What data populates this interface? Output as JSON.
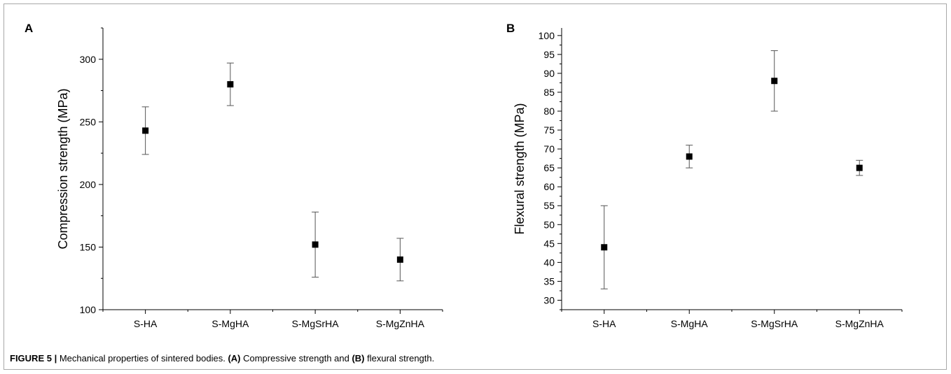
{
  "chart_data": [
    {
      "type": "scatter",
      "panel": "A",
      "categories": [
        "S-HA",
        "S-MgHA",
        "S-MgSrHA",
        "S-MgZnHA"
      ],
      "series": [
        {
          "values": [
            243,
            280,
            152,
            140
          ],
          "error_low": [
            224,
            263,
            126,
            123
          ],
          "error_high": [
            262,
            297,
            178,
            157
          ]
        }
      ],
      "ylabel": "Compression strength (MPa)",
      "ylim": [
        100,
        325
      ],
      "yticks": [
        100,
        150,
        200,
        250,
        300
      ],
      "grid": false
    },
    {
      "type": "scatter",
      "panel": "B",
      "categories": [
        "S-HA",
        "S-MgHA",
        "S-MgSrHA",
        "S-MgZnHA"
      ],
      "series": [
        {
          "values": [
            44,
            68,
            88,
            65
          ],
          "error_low": [
            33,
            65,
            80,
            63
          ],
          "error_high": [
            55,
            71,
            96,
            67
          ]
        }
      ],
      "ylabel": "Flexural strength (MPa)",
      "ylim": [
        27.5,
        102
      ],
      "yticks": [
        30,
        35,
        40,
        45,
        50,
        55,
        60,
        65,
        70,
        75,
        80,
        85,
        90,
        95,
        100
      ],
      "grid": false
    }
  ],
  "caption": {
    "label": "FIGURE 5 |",
    "text1": " Mechanical properties of sintered bodies. ",
    "a_ref": "(A)",
    "text2": " Compressive strength and ",
    "b_ref": "(B)",
    "text3": " flexural strength."
  },
  "colors": {
    "marker": "#000000",
    "axis": "#000000",
    "error_bar": "#555555",
    "frame": "#a8a8a8"
  }
}
